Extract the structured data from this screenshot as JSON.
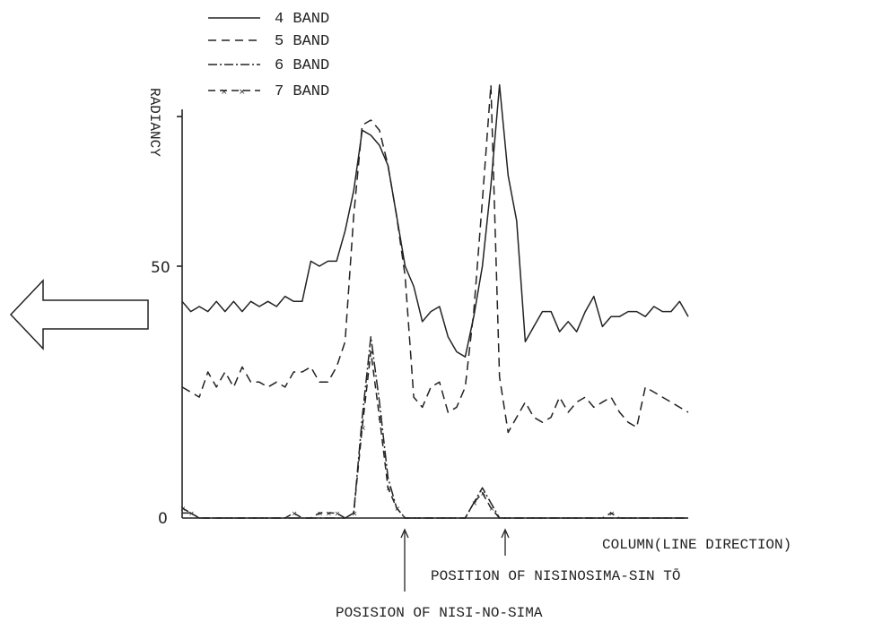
{
  "chart_data": {
    "type": "line",
    "title": "",
    "ylabel": "RADIANCY",
    "xlabel": "COLUMN(LINE DIRECTION)",
    "ylim": [
      0,
      90
    ],
    "x_count": 60,
    "yticks": [
      0,
      50
    ],
    "legend_position": "top-left",
    "series": [
      {
        "name": "4 BAND",
        "style": "solid",
        "values": [
          43,
          41,
          42,
          41,
          43,
          41,
          43,
          41,
          43,
          42,
          43,
          42,
          44,
          43,
          43,
          51,
          50,
          51,
          51,
          57,
          65,
          77,
          76,
          74,
          70,
          60,
          50,
          46,
          39,
          41,
          42,
          36,
          33,
          32,
          40,
          50,
          66,
          86,
          68,
          59,
          35,
          38,
          41,
          41,
          37,
          39,
          37,
          41,
          44,
          38,
          40,
          40,
          41,
          41,
          40,
          42,
          41,
          41,
          43,
          40
        ]
      },
      {
        "name": "5 BAND",
        "style": "dashed",
        "values": [
          26,
          25,
          24,
          29,
          26,
          29,
          26,
          30,
          27,
          27,
          26,
          27,
          26,
          29,
          29,
          30,
          27,
          27,
          30,
          35,
          60,
          78,
          79,
          77,
          70,
          60,
          48,
          24,
          22,
          26,
          27,
          21,
          22,
          26,
          41,
          63,
          86,
          28,
          17,
          20,
          23,
          20,
          19,
          20,
          24,
          21,
          23,
          24,
          22,
          23,
          24,
          21,
          19,
          18,
          26,
          25,
          24,
          23,
          22,
          21
        ]
      },
      {
        "name": "6 BAND",
        "style": "dash-dot",
        "values": [
          1,
          1,
          0,
          0,
          0,
          0,
          0,
          0,
          0,
          0,
          0,
          0,
          0,
          0,
          0,
          0,
          0,
          0,
          0,
          0,
          1,
          20,
          36,
          23,
          8,
          2,
          0,
          0,
          0,
          0,
          0,
          0,
          0,
          0,
          3,
          6,
          3,
          0,
          0,
          0,
          0,
          0,
          0,
          0,
          0,
          0,
          0,
          0,
          0,
          0,
          0,
          0,
          0,
          0,
          0,
          0,
          0,
          0,
          0,
          0
        ]
      },
      {
        "name": "7 BAND",
        "style": "dash-x",
        "values": [
          2,
          1,
          0,
          0,
          0,
          0,
          0,
          0,
          0,
          0,
          0,
          0,
          0,
          1,
          0,
          0,
          1,
          1,
          1,
          0,
          1,
          18,
          33,
          20,
          6,
          2,
          0,
          0,
          0,
          0,
          0,
          0,
          0,
          0,
          3,
          5,
          2,
          0,
          0,
          0,
          0,
          0,
          0,
          0,
          0,
          0,
          0,
          0,
          0,
          0,
          1,
          0,
          0,
          0,
          0,
          0,
          0,
          0,
          0,
          0
        ]
      }
    ],
    "annotations": [
      {
        "text": "POSITION OF NISINOSIMA-SIN TŌ",
        "x_index": 36
      },
      {
        "text": "POSISION OF NISI-NO-SIMA",
        "x_index": 22
      }
    ]
  }
}
